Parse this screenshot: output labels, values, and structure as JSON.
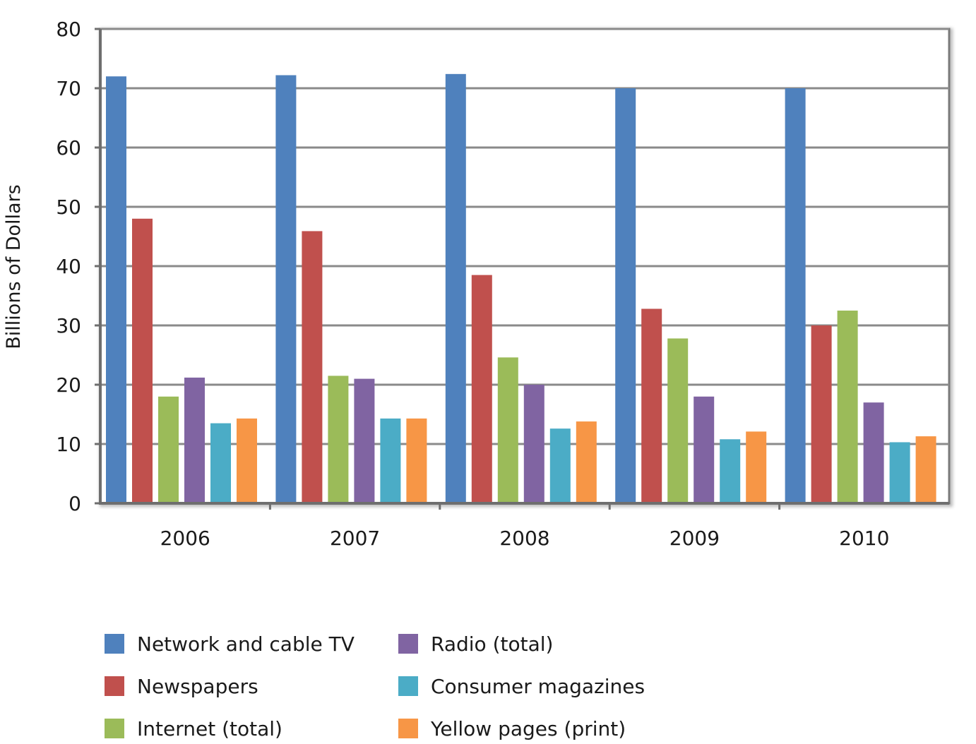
{
  "chart_data": {
    "type": "bar",
    "title": "",
    "xlabel": "",
    "ylabel": "Billions of Dollars",
    "ylim": [
      0,
      80
    ],
    "yticks": [
      0,
      10,
      20,
      30,
      40,
      50,
      60,
      70,
      80
    ],
    "grid": true,
    "legend_position": "bottom",
    "categories": [
      "2006",
      "2007",
      "2008",
      "2009",
      "2010"
    ],
    "series": [
      {
        "name": "Network and cable TV",
        "color": "#4F81BD",
        "values": [
          72,
          72.2,
          72.4,
          70,
          70
        ]
      },
      {
        "name": "Newspapers",
        "color": "#C0504D",
        "values": [
          48,
          45.9,
          38.5,
          32.8,
          30
        ]
      },
      {
        "name": "Internet (total)",
        "color": "#9BBB59",
        "values": [
          18,
          21.5,
          24.6,
          27.8,
          32.5
        ]
      },
      {
        "name": "Radio (total)",
        "color": "#8064A2",
        "values": [
          21.2,
          21,
          20,
          18,
          17
        ]
      },
      {
        "name": "Consumer magazines",
        "color": "#4BACC6",
        "values": [
          13.5,
          14.3,
          12.6,
          10.8,
          10.3
        ]
      },
      {
        "name": "Yellow pages (print)",
        "color": "#F79646",
        "values": [
          14.3,
          14.3,
          13.8,
          12.1,
          11.3
        ]
      }
    ]
  }
}
